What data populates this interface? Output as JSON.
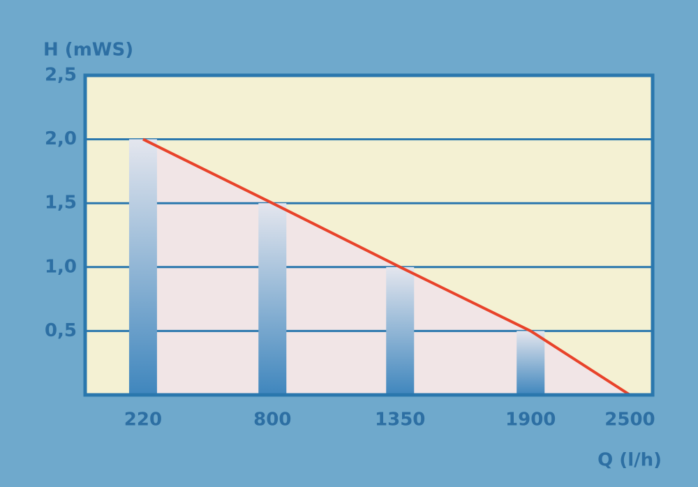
{
  "chart_data": {
    "type": "bar",
    "y_label": "H (mWS)",
    "x_label": "Q (l/h)",
    "categories": [
      "220",
      "800",
      "1350",
      "1900",
      "2500"
    ],
    "values": [
      2.0,
      1.5,
      1.0,
      0.5,
      null
    ],
    "line": {
      "color": "#e8432a",
      "values": [
        2.0,
        1.5,
        1.0,
        0.5,
        0
      ]
    },
    "ylim": [
      0,
      2.5
    ],
    "yticks": [
      {
        "value": 0.5,
        "label": "0,5"
      },
      {
        "value": 1.0,
        "label": "1,0"
      },
      {
        "value": 1.5,
        "label": "1,5"
      },
      {
        "value": 2.0,
        "label": "2,0"
      },
      {
        "value": 2.5,
        "label": "2,5"
      }
    ],
    "grid": true
  }
}
